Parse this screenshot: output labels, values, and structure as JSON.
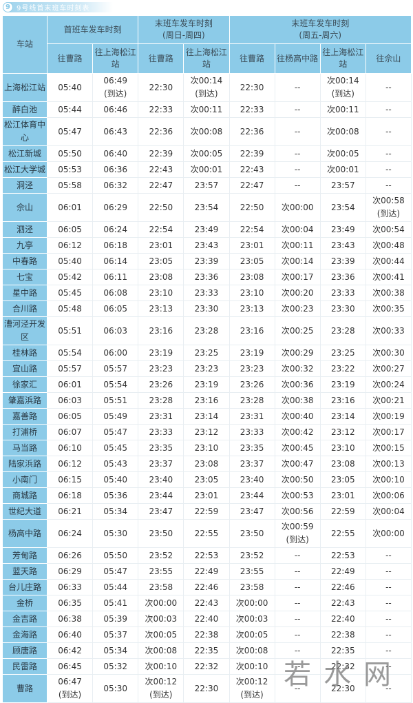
{
  "title": {
    "badge": "9",
    "text": "9号线首末班车时刻表"
  },
  "colors": {
    "header_bg": "#8ccbe8",
    "station_bg": "#8ccbe8"
  },
  "headers": {
    "station": "车站",
    "first_train": "首班车发车时刻",
    "last_sun_thu": "末班车发车时刻\n(周日-周四)",
    "last_fri_sat": "末班车发车时刻\n(周五-周六)",
    "to_caolu": "往曹路",
    "to_songjiang": "往上海松江站",
    "to_yanggao": "往杨高中路",
    "to_sheshan": "往佘山"
  },
  "rows": [
    [
      "上海松江站",
      "05:40",
      "06:49\n(到达)",
      "22:30",
      "次00:14\n(到达)",
      "22:30",
      "--",
      "次00:14\n(到达)",
      "--"
    ],
    [
      "醉白池",
      "05:44",
      "06:46",
      "22:33",
      "次00:11",
      "22:33",
      "--",
      "次00:11",
      "--"
    ],
    [
      "松江体育中心",
      "05:47",
      "06:43",
      "22:36",
      "次00:08",
      "22:36",
      "--",
      "次00:08",
      "--"
    ],
    [
      "松江新城",
      "05:50",
      "06:40",
      "22:39",
      "次00:05",
      "22:39",
      "--",
      "次00:05",
      "--"
    ],
    [
      "松江大学城",
      "05:53",
      "06:36",
      "22:43",
      "次00:01",
      "22:43",
      "--",
      "次00:01",
      "--"
    ],
    [
      "洞泾",
      "05:58",
      "06:32",
      "22:47",
      "23:57",
      "22:47",
      "--",
      "23:57",
      "--"
    ],
    [
      "佘山",
      "06:01",
      "06:29",
      "22:50",
      "23:54",
      "22:50",
      "次00:00",
      "23:54",
      "次00:58\n(到达)"
    ],
    [
      "泗泾",
      "06:05",
      "06:24",
      "22:54",
      "23:49",
      "22:54",
      "次00:04",
      "23:49",
      "次00:54"
    ],
    [
      "九亭",
      "06:12",
      "06:18",
      "23:01",
      "23:43",
      "23:01",
      "次00:11",
      "23:43",
      "次00:48"
    ],
    [
      "中春路",
      "05:40",
      "06:14",
      "23:05",
      "23:39",
      "23:05",
      "次00:14",
      "23:39",
      "次00:44"
    ],
    [
      "七宝",
      "05:42",
      "06:11",
      "23:08",
      "23:36",
      "23:08",
      "次00:17",
      "23:36",
      "次00:41"
    ],
    [
      "星中路",
      "05:45",
      "06:08",
      "23:10",
      "23:33",
      "23:10",
      "次00:20",
      "23:33",
      "次00:38"
    ],
    [
      "合川路",
      "05:48",
      "06:05",
      "23:13",
      "23:30",
      "23:13",
      "次00:23",
      "23:30",
      "次00:35"
    ],
    [
      "漕河泾开发区",
      "05:51",
      "06:03",
      "23:16",
      "23:28",
      "23:16",
      "次00:25",
      "23:28",
      "次00:33"
    ],
    [
      "桂林路",
      "05:54",
      "06:00",
      "23:19",
      "23:25",
      "23:19",
      "次00:29",
      "23:25",
      "次00:30"
    ],
    [
      "宜山路",
      "05:57",
      "05:57",
      "23:23",
      "23:23",
      "23:23",
      "次00:32",
      "23:22",
      "次00:27"
    ],
    [
      "徐家汇",
      "06:01",
      "05:54",
      "23:26",
      "23:19",
      "23:26",
      "次00:36",
      "23:19",
      "次00:24"
    ],
    [
      "肇嘉浜路",
      "06:03",
      "05:51",
      "23:28",
      "23:16",
      "23:28",
      "次00:38",
      "23:16",
      "次00:21"
    ],
    [
      "嘉善路",
      "06:05",
      "05:49",
      "23:31",
      "23:14",
      "23:31",
      "次00:40",
      "23:14",
      "次00:19"
    ],
    [
      "打浦桥",
      "06:07",
      "05:47",
      "23:33",
      "23:12",
      "23:33",
      "次00:42",
      "23:12",
      "次00:17"
    ],
    [
      "马当路",
      "06:10",
      "05:45",
      "23:35",
      "23:10",
      "23:35",
      "次00:45",
      "23:10",
      "次00:15"
    ],
    [
      "陆家浜路",
      "06:12",
      "05:43",
      "23:37",
      "23:08",
      "23:37",
      "次00:47",
      "23:08",
      "次00:13"
    ],
    [
      "小南门",
      "06:15",
      "05:40",
      "23:40",
      "23:05",
      "23:40",
      "次00:50",
      "23:05",
      "次00:10"
    ],
    [
      "商城路",
      "06:18",
      "05:36",
      "23:44",
      "23:01",
      "23:44",
      "次00:53",
      "23:01",
      "次00:06"
    ],
    [
      "世纪大道",
      "06:21",
      "05:34",
      "23:47",
      "22:59",
      "23:47",
      "次00:56",
      "22:59",
      "次00:04"
    ],
    [
      "杨高中路",
      "06:24",
      "05:30",
      "23:50",
      "22:55",
      "23:50",
      "次00:59\n(到达)",
      "22:55",
      "次00:00"
    ],
    [
      "芳甸路",
      "06:26",
      "05:50",
      "23:52",
      "22:53",
      "23:52",
      "--",
      "22:53",
      "--"
    ],
    [
      "蓝天路",
      "06:29",
      "05:47",
      "23:55",
      "22:49",
      "23:55",
      "--",
      "22:49",
      "--"
    ],
    [
      "台儿庄路",
      "06:33",
      "05:44",
      "23:58",
      "22:46",
      "23:58",
      "--",
      "22:46",
      "--"
    ],
    [
      "金桥",
      "06:35",
      "05:41",
      "次00:00",
      "22:43",
      "次00:00",
      "--",
      "22:43",
      "--"
    ],
    [
      "金吉路",
      "06:38",
      "05:39",
      "次00:03",
      "22:40",
      "次00:03",
      "--",
      "22:40",
      "--"
    ],
    [
      "金海路",
      "06:40",
      "05:37",
      "次00:05",
      "22:38",
      "次00:05",
      "--",
      "22:38",
      "--"
    ],
    [
      "顾唐路",
      "06:42",
      "05:34",
      "次00:08",
      "22:35",
      "次00:08",
      "--",
      "22:35",
      "--"
    ],
    [
      "民雷路",
      "06:45",
      "05:32",
      "次00:10",
      "22:32",
      "次00:10",
      "--",
      "22:32",
      "--"
    ],
    [
      "曹路",
      "06:47\n(到达)",
      "05:30",
      "次00:12\n(到达)",
      "22:30",
      "次00:12\n(到达)",
      "--",
      "22:30",
      "--"
    ]
  ],
  "watermark": "若水网"
}
